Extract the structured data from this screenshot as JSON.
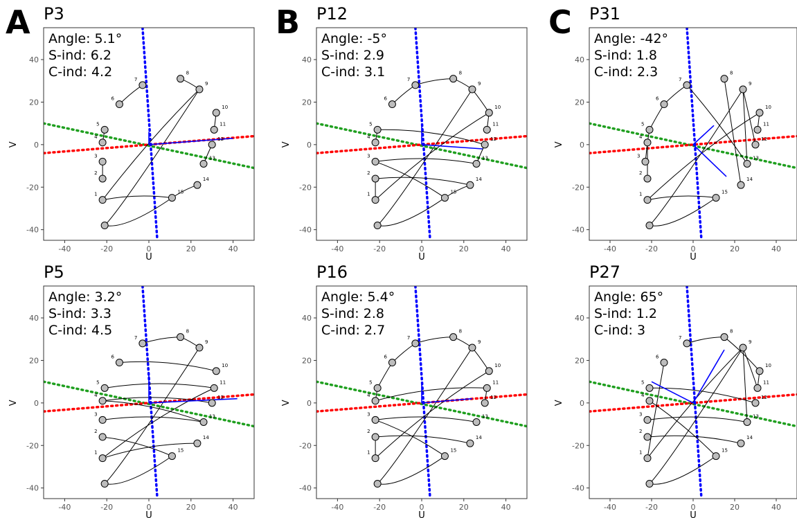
{
  "colors": {
    "mid": "#0000ff",
    "red": "#ff0000",
    "green": "#1f9f1f",
    "node": "#bdbdbd"
  },
  "axis_common": {
    "xlabel": "U",
    "ylabel": "V",
    "xlim": [
      -50,
      50
    ],
    "ylim": [
      -45,
      55
    ],
    "xticks": [
      -40,
      -20,
      0,
      20,
      40
    ],
    "yticks": [
      -40,
      -20,
      0,
      20,
      40
    ],
    "grid": false
  },
  "chart_data": [
    {
      "type": "scatter",
      "panel_letter": "A",
      "title": "P3",
      "annotations": [
        "Angle: 5.1°",
        "S-ind: 6.2",
        "C-ind: 4.2"
      ],
      "points": [
        [
          -22,
          -26
        ],
        [
          -22,
          -16
        ],
        [
          -22,
          -8
        ],
        [
          -22,
          1
        ],
        [
          -21,
          7
        ],
        [
          -14,
          19
        ],
        [
          -3,
          28
        ],
        [
          15,
          31
        ],
        [
          24,
          26
        ],
        [
          32,
          15
        ],
        [
          31,
          7
        ],
        [
          30,
          0
        ],
        [
          26,
          -9
        ],
        [
          23,
          -19
        ],
        [
          11,
          -25
        ]
      ],
      "point_labels": [
        "1",
        "2",
        "3",
        "4",
        "5",
        "6",
        "7",
        "8",
        "9",
        "10",
        "11",
        "12",
        "13",
        "14",
        "15"
      ],
      "curves": [
        [
          2,
          3
        ],
        [
          4,
          5
        ],
        [
          6,
          7
        ],
        [
          8,
          9
        ],
        [
          10,
          11
        ],
        [
          12,
          13
        ],
        [
          14,
          15
        ],
        [
          1,
          9
        ],
        [
          1,
          15
        ]
      ],
      "start_point": [
        -21,
        -38
      ],
      "mid_line": [
        [
          -3,
          55
        ],
        [
          4,
          -45
        ]
      ],
      "red_line": [
        [
          -50,
          -4
        ],
        [
          50,
          4
        ]
      ],
      "green_line": [
        [
          -50,
          10
        ],
        [
          50,
          -11
        ]
      ],
      "axis_u_end": [
        40,
        3
      ],
      "axis_v_end": [
        0,
        6
      ]
    },
    {
      "type": "scatter",
      "panel_letter": "B",
      "title": "P12",
      "annotations": [
        "Angle: -5°",
        "S-ind: 2.9",
        "C-ind: 3.1"
      ],
      "points": [
        [
          -22,
          -26
        ],
        [
          -22,
          -16
        ],
        [
          -22,
          -8
        ],
        [
          -22,
          1
        ],
        [
          -21,
          7
        ],
        [
          -14,
          19
        ],
        [
          -3,
          28
        ],
        [
          15,
          31
        ],
        [
          24,
          26
        ],
        [
          32,
          15
        ],
        [
          31,
          7
        ],
        [
          30,
          0
        ],
        [
          26,
          -9
        ],
        [
          23,
          -19
        ],
        [
          11,
          -25
        ]
      ],
      "point_labels": [
        "1",
        "2",
        "3",
        "4",
        "5",
        "6",
        "7",
        "8",
        "9",
        "10",
        "11",
        "12",
        "13",
        "14",
        "15"
      ],
      "curves": [
        [
          1,
          2
        ],
        [
          2,
          14
        ],
        [
          3,
          13
        ],
        [
          4,
          5
        ],
        [
          5,
          12
        ],
        [
          6,
          7
        ],
        [
          7,
          8
        ],
        [
          8,
          9
        ],
        [
          9,
          10
        ],
        [
          10,
          11
        ],
        [
          12,
          13
        ],
        [
          14,
          15
        ],
        [
          1,
          10
        ],
        [
          3,
          15
        ]
      ],
      "start_point": [
        -21,
        -38
      ],
      "mid_line": [
        [
          -3,
          55
        ],
        [
          4,
          -45
        ]
      ],
      "red_line": [
        [
          -50,
          -4
        ],
        [
          50,
          4
        ]
      ],
      "green_line": [
        [
          -50,
          10
        ],
        [
          50,
          -11
        ]
      ],
      "axis_u_end": [
        29,
        -2
      ],
      "axis_v_end": [
        0,
        10
      ]
    },
    {
      "type": "scatter",
      "panel_letter": "C",
      "title": "P31",
      "annotations": [
        "Angle: -42°",
        "S-ind: 1.8",
        "C-ind: 2.3"
      ],
      "points": [
        [
          -22,
          -26
        ],
        [
          -22,
          -16
        ],
        [
          -23,
          -8
        ],
        [
          -22,
          1
        ],
        [
          -21,
          7
        ],
        [
          -14,
          19
        ],
        [
          -3,
          28
        ],
        [
          15,
          31
        ],
        [
          24,
          26
        ],
        [
          32,
          15
        ],
        [
          31,
          7
        ],
        [
          30,
          0
        ],
        [
          26,
          -9
        ],
        [
          23,
          -19
        ],
        [
          11,
          -25
        ]
      ],
      "point_labels": [
        "1",
        "2",
        "3",
        "4",
        "5",
        "6",
        "7",
        "8",
        "9",
        "10",
        "11",
        "12",
        "13",
        "14",
        "15"
      ],
      "curves": [
        [
          1,
          15
        ],
        [
          4,
          5
        ],
        [
          2,
          4
        ],
        [
          3,
          4
        ],
        [
          5,
          6
        ],
        [
          6,
          7
        ],
        [
          8,
          14
        ],
        [
          9,
          13
        ],
        [
          9,
          12
        ],
        [
          7,
          13
        ],
        [
          10,
          11
        ],
        [
          1,
          10
        ]
      ],
      "start_point": [
        -21,
        -38
      ],
      "mid_line": [
        [
          -3,
          55
        ],
        [
          4,
          -45
        ]
      ],
      "red_line": [
        [
          -50,
          -4
        ],
        [
          50,
          4
        ]
      ],
      "green_line": [
        [
          -50,
          10
        ],
        [
          50,
          -11
        ]
      ],
      "axis_u_end": [
        16,
        -15
      ],
      "axis_v_end": [
        10,
        9
      ]
    },
    {
      "type": "scatter",
      "panel_letter": "",
      "title": "P5",
      "annotations": [
        "Angle: 3.2°",
        "S-ind: 3.3",
        "C-ind: 4.5"
      ],
      "points": [
        [
          -22,
          -26
        ],
        [
          -22,
          -16
        ],
        [
          -22,
          -8
        ],
        [
          -22,
          1
        ],
        [
          -21,
          7
        ],
        [
          -14,
          19
        ],
        [
          -3,
          28
        ],
        [
          15,
          31
        ],
        [
          24,
          26
        ],
        [
          32,
          15
        ],
        [
          31,
          7
        ],
        [
          30,
          0
        ],
        [
          26,
          -9
        ],
        [
          23,
          -19
        ],
        [
          11,
          -25
        ]
      ],
      "point_labels": [
        "1",
        "2",
        "3",
        "4",
        "5",
        "6",
        "7",
        "8",
        "9",
        "10",
        "11",
        "12",
        "13",
        "14",
        "15"
      ],
      "curves": [
        [
          1,
          14
        ],
        [
          2,
          15
        ],
        [
          3,
          13
        ],
        [
          4,
          12
        ],
        [
          5,
          11
        ],
        [
          6,
          10
        ],
        [
          7,
          8
        ],
        [
          8,
          9
        ],
        [
          1,
          11
        ],
        [
          4,
          13
        ]
      ],
      "start_point": [
        -21,
        -38
      ],
      "mid_line": [
        [
          -3,
          55
        ],
        [
          4,
          -45
        ]
      ],
      "red_line": [
        [
          -50,
          -4
        ],
        [
          50,
          4
        ]
      ],
      "green_line": [
        [
          -50,
          10
        ],
        [
          50,
          -11
        ]
      ],
      "axis_u_end": [
        42,
        2
      ],
      "axis_v_end": [
        0,
        13
      ]
    },
    {
      "type": "scatter",
      "panel_letter": "",
      "title": "P16",
      "annotations": [
        "Angle: 5.4°",
        "S-ind: 2.8",
        "C-ind: 2.7"
      ],
      "points": [
        [
          -22,
          -26
        ],
        [
          -22,
          -16
        ],
        [
          -22,
          -8
        ],
        [
          -22,
          1
        ],
        [
          -21,
          7
        ],
        [
          -14,
          19
        ],
        [
          -3,
          28
        ],
        [
          15,
          31
        ],
        [
          24,
          26
        ],
        [
          32,
          15
        ],
        [
          31,
          7
        ],
        [
          30,
          0
        ],
        [
          26,
          -9
        ],
        [
          23,
          -19
        ],
        [
          11,
          -25
        ]
      ],
      "point_labels": [
        "1",
        "2",
        "3",
        "4",
        "5",
        "6",
        "7",
        "8",
        "9",
        "10",
        "11",
        "12",
        "13",
        "14",
        "15"
      ],
      "curves": [
        [
          1,
          2
        ],
        [
          2,
          14
        ],
        [
          3,
          13
        ],
        [
          4,
          5
        ],
        [
          5,
          6
        ],
        [
          6,
          7
        ],
        [
          7,
          8
        ],
        [
          8,
          9
        ],
        [
          9,
          10
        ],
        [
          4,
          11
        ],
        [
          11,
          12
        ],
        [
          3,
          15
        ],
        [
          1,
          10
        ]
      ],
      "start_point": [
        -21,
        -38
      ],
      "mid_line": [
        [
          -3,
          55
        ],
        [
          4,
          -45
        ]
      ],
      "red_line": [
        [
          -50,
          -4
        ],
        [
          50,
          4
        ]
      ],
      "green_line": [
        [
          -50,
          10
        ],
        [
          50,
          -11
        ]
      ],
      "axis_u_end": [
        24,
        2
      ],
      "axis_v_end": [
        0,
        9
      ]
    },
    {
      "type": "scatter",
      "panel_letter": "",
      "title": "P27",
      "annotations": [
        "Angle: 65°",
        "S-ind: 1.2",
        "C-ind: 3"
      ],
      "points": [
        [
          -22,
          -26
        ],
        [
          -22,
          -16
        ],
        [
          -22,
          -8
        ],
        [
          -21,
          1
        ],
        [
          -21,
          7
        ],
        [
          -14,
          19
        ],
        [
          -3,
          28
        ],
        [
          15,
          31
        ],
        [
          24,
          26
        ],
        [
          32,
          15
        ],
        [
          31,
          7
        ],
        [
          30,
          0
        ],
        [
          26,
          -9
        ],
        [
          23,
          -19
        ],
        [
          11,
          -25
        ]
      ],
      "point_labels": [
        "1",
        "2",
        "3",
        "4",
        "5",
        "6",
        "7",
        "8",
        "9",
        "10",
        "11",
        "12",
        "13",
        "14",
        "15"
      ],
      "curves": [
        [
          1,
          6
        ],
        [
          5,
          12
        ],
        [
          3,
          13
        ],
        [
          2,
          14
        ],
        [
          4,
          15
        ],
        [
          7,
          8
        ],
        [
          8,
          10
        ],
        [
          10,
          11
        ],
        [
          9,
          11
        ],
        [
          9,
          13
        ],
        [
          1,
          9
        ]
      ],
      "start_point": [
        -21,
        -38
      ],
      "mid_line": [
        [
          -3,
          55
        ],
        [
          4,
          -45
        ]
      ],
      "red_line": [
        [
          -50,
          -4
        ],
        [
          50,
          4
        ]
      ],
      "green_line": [
        [
          -50,
          10
        ],
        [
          50,
          -11
        ]
      ],
      "axis_u_end": [
        -20,
        10
      ],
      "axis_v_end": [
        15,
        25
      ]
    }
  ]
}
